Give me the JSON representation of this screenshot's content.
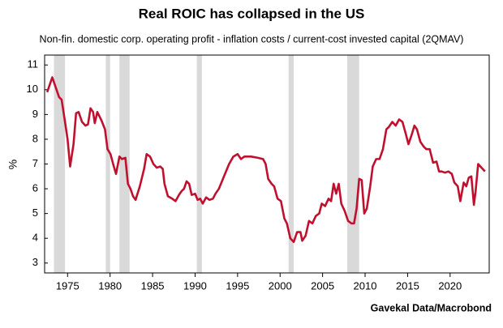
{
  "chart_data": {
    "type": "line",
    "title": "Real ROIC has collapsed in the US",
    "subtitle": "Non-fin. domestic corp. operating profit - inflation costs / current-cost invested capital (2QMAV)",
    "y_label": "%",
    "source": "Gavekal Data/Macrobond",
    "xlim": [
      1972.3,
      2024.6
    ],
    "xticks": [
      1975,
      1980,
      1985,
      1990,
      1995,
      2000,
      2005,
      2010,
      2015,
      2020
    ],
    "ylim": [
      2.6,
      11.4
    ],
    "yticks": [
      3,
      4,
      5,
      6,
      7,
      8,
      9,
      10,
      11
    ],
    "grid": false,
    "recession_color": "#d9d9d9",
    "recessions": [
      [
        1973.4,
        1974.7
      ],
      [
        1979.5,
        1980.0
      ],
      [
        1981.1,
        1982.3
      ],
      [
        1990.2,
        1990.8
      ],
      [
        2001.0,
        2001.6
      ],
      [
        2007.9,
        2009.3
      ]
    ],
    "x": [
      1972.6,
      1973.2,
      1974.0,
      1974.3,
      1974.7,
      1975.0,
      1975.3,
      1975.7,
      1976.0,
      1976.3,
      1976.7,
      1977.1,
      1977.4,
      1977.7,
      1978.0,
      1978.2,
      1978.5,
      1979.0,
      1979.4,
      1979.7,
      1980.05,
      1980.4,
      1980.7,
      1981.1,
      1981.4,
      1981.8,
      1982.1,
      1982.4,
      1982.7,
      1983.0,
      1983.5,
      1984.0,
      1984.3,
      1984.7,
      1985.1,
      1985.5,
      1985.9,
      1986.2,
      1986.4,
      1986.8,
      1987.3,
      1987.7,
      1988.1,
      1988.4,
      1988.7,
      1989.0,
      1989.3,
      1989.6,
      1990.0,
      1990.3,
      1990.6,
      1990.9,
      1991.3,
      1991.7,
      1992.1,
      1992.4,
      1992.8,
      1993.4,
      1994.0,
      1994.5,
      1995.0,
      1995.4,
      1995.8,
      1996.6,
      1997.4,
      1998.0,
      1998.3,
      1998.6,
      1999.0,
      1999.3,
      1999.7,
      2000.1,
      2000.5,
      2000.8,
      2001.2,
      2001.6,
      2002.0,
      2002.4,
      2002.6,
      2003.0,
      2003.4,
      2003.8,
      2004.2,
      2004.6,
      2004.9,
      2005.3,
      2005.7,
      2006.0,
      2006.3,
      2006.6,
      2006.9,
      2007.2,
      2007.6,
      2008.0,
      2008.4,
      2008.7,
      2009.0,
      2009.3,
      2009.6,
      2009.9,
      2010.2,
      2010.6,
      2010.9,
      2011.3,
      2011.7,
      2012.1,
      2012.5,
      2012.8,
      2013.2,
      2013.6,
      2014.0,
      2014.4,
      2014.8,
      2015.1,
      2015.5,
      2015.8,
      2016.1,
      2016.5,
      2016.9,
      2017.2,
      2017.6,
      2018.0,
      2018.4,
      2018.7,
      2019.0,
      2019.4,
      2019.8,
      2020.2,
      2020.5,
      2020.9,
      2021.2,
      2021.6,
      2021.9,
      2022.2,
      2022.5,
      2022.8,
      2023.0,
      2023.3,
      2023.7,
      2024.1
    ],
    "series": [
      {
        "name": "Real ROIC",
        "color": "#c0102f",
        "values": [
          9.9,
          10.5,
          9.7,
          9.6,
          8.7,
          8.0,
          6.9,
          7.8,
          9.05,
          9.1,
          8.7,
          8.55,
          8.6,
          9.25,
          9.1,
          8.65,
          9.1,
          8.75,
          8.4,
          7.6,
          7.4,
          6.95,
          6.6,
          7.3,
          7.2,
          7.25,
          6.2,
          6.0,
          5.7,
          5.55,
          6.1,
          6.8,
          7.4,
          7.3,
          7.0,
          6.85,
          6.9,
          6.8,
          6.2,
          5.7,
          5.6,
          5.5,
          5.75,
          5.9,
          6.0,
          6.3,
          6.2,
          5.75,
          5.8,
          5.55,
          5.6,
          5.4,
          5.65,
          5.55,
          5.6,
          5.8,
          6.0,
          6.5,
          7.0,
          7.3,
          7.4,
          7.2,
          7.3,
          7.3,
          7.25,
          7.2,
          7.0,
          6.4,
          6.2,
          6.1,
          5.6,
          5.5,
          4.8,
          4.6,
          4.0,
          3.85,
          4.25,
          4.25,
          3.9,
          4.1,
          4.7,
          4.6,
          4.9,
          5.0,
          5.4,
          5.3,
          5.6,
          5.5,
          6.2,
          5.8,
          6.2,
          5.4,
          5.1,
          4.7,
          4.6,
          4.6,
          5.2,
          6.4,
          6.35,
          5.0,
          5.2,
          6.1,
          6.9,
          7.2,
          7.2,
          7.6,
          8.4,
          8.5,
          8.7,
          8.55,
          8.8,
          8.7,
          8.2,
          7.8,
          8.2,
          8.55,
          8.4,
          7.9,
          7.7,
          7.6,
          7.6,
          7.05,
          7.1,
          6.7,
          6.7,
          6.65,
          6.7,
          6.6,
          6.25,
          6.1,
          5.5,
          6.25,
          6.1,
          6.45,
          6.5,
          5.35,
          5.9,
          7.0,
          6.85,
          6.7
        ]
      }
    ]
  }
}
